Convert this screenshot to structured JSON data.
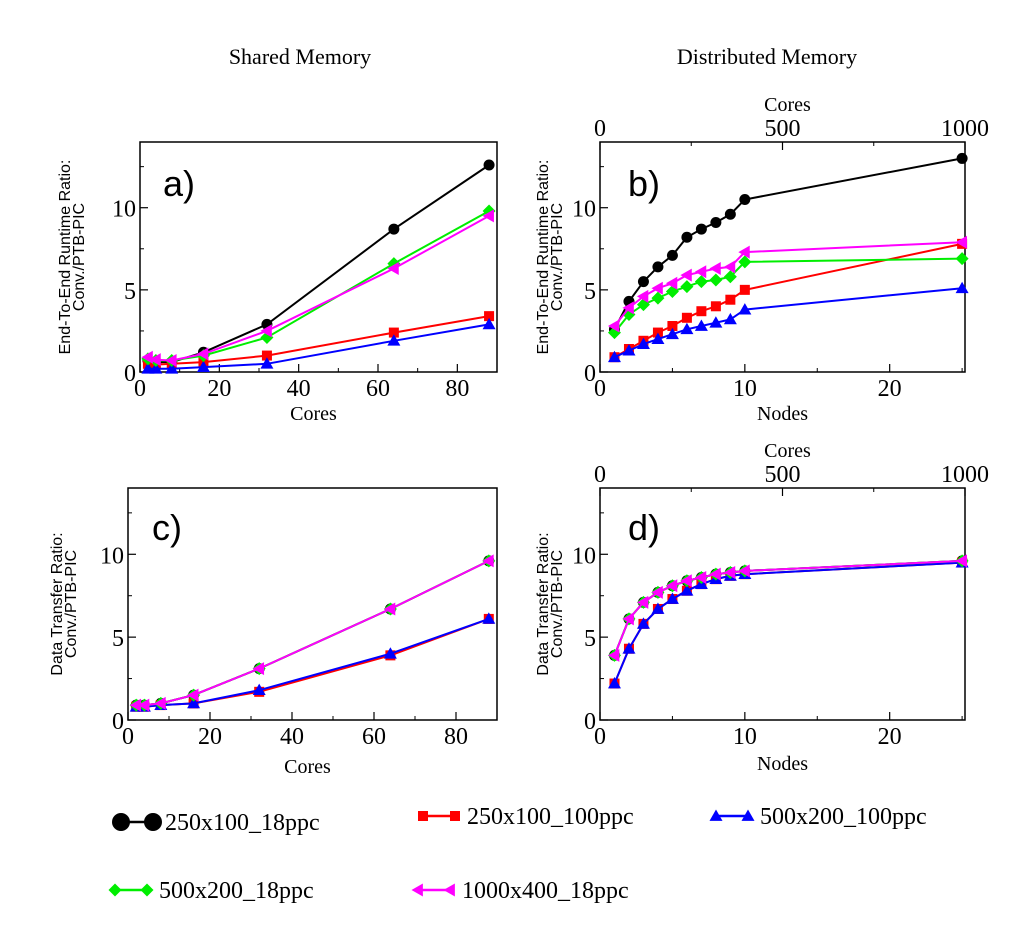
{
  "column_titles": [
    "Shared Memory",
    "Distributed Memory"
  ],
  "legend": [
    {
      "name": "250x100_18ppc",
      "color": "#000000",
      "marker": "circle"
    },
    {
      "name": "250x100_100ppc",
      "color": "#ff0000",
      "marker": "square"
    },
    {
      "name": "500x200_100ppc",
      "color": "#0000ff",
      "marker": "triangle-up"
    },
    {
      "name": "500x200_18ppc",
      "color": "#00ee00",
      "marker": "diamond"
    },
    {
      "name": "1000x400_18ppc",
      "color": "#ff00ff",
      "marker": "triangle-left"
    }
  ],
  "chart_data": [
    {
      "panel": "a)",
      "type": "line",
      "title": "Shared Memory",
      "xlabel": "Cores",
      "ylabel_lines": [
        "End-To-End Runtime Ratio:",
        "Conv./PTB-PIC"
      ],
      "xlim": [
        0,
        90
      ],
      "ylim": [
        0,
        14
      ],
      "xticks": [
        0,
        20,
        40,
        60,
        80
      ],
      "yticks": [
        0,
        5,
        10
      ],
      "x": [
        2,
        4,
        8,
        16,
        32,
        64,
        88
      ],
      "series": [
        {
          "name": "250x100_18ppc",
          "values": [
            0.7,
            0.6,
            0.6,
            1.2,
            2.9,
            8.7,
            12.6
          ]
        },
        {
          "name": "250x100_100ppc",
          "values": [
            0.5,
            0.45,
            0.5,
            0.6,
            1.0,
            2.4,
            3.4
          ]
        },
        {
          "name": "500x200_100ppc",
          "values": [
            0.2,
            0.2,
            0.2,
            0.3,
            0.5,
            1.9,
            2.9
          ]
        },
        {
          "name": "500x200_18ppc",
          "values": [
            0.8,
            0.7,
            0.7,
            1.0,
            2.1,
            6.6,
            9.8
          ]
        },
        {
          "name": "1000x400_18ppc",
          "values": [
            0.9,
            0.75,
            0.7,
            1.1,
            2.5,
            6.3,
            9.5
          ]
        }
      ]
    },
    {
      "panel": "b)",
      "type": "line",
      "title": "Distributed Memory",
      "xlabel": "Nodes",
      "top_xlabel": "Cores",
      "ylabel_lines": [
        "End-To-End Runtime Ratio:",
        "Conv./PTB-PIC"
      ],
      "xlim": [
        0,
        25.2
      ],
      "ylim": [
        0,
        14
      ],
      "xticks": [
        0,
        10,
        20
      ],
      "yticks": [
        0,
        5,
        10
      ],
      "top_xlim": [
        0,
        1000
      ],
      "top_xticks": [
        0,
        500,
        1000
      ],
      "x": [
        1,
        2,
        3,
        4,
        5,
        6,
        7,
        8,
        9,
        10,
        25
      ],
      "series": [
        {
          "name": "250x100_18ppc",
          "values": [
            2.6,
            4.3,
            5.5,
            6.4,
            7.1,
            8.2,
            8.7,
            9.1,
            9.6,
            10.5,
            13.0
          ]
        },
        {
          "name": "250x100_100ppc",
          "values": [
            0.9,
            1.4,
            1.9,
            2.4,
            2.8,
            3.3,
            3.7,
            4.0,
            4.4,
            5.0,
            7.8
          ]
        },
        {
          "name": "500x200_100ppc",
          "values": [
            0.9,
            1.3,
            1.7,
            2.0,
            2.3,
            2.6,
            2.8,
            3.0,
            3.2,
            3.8,
            5.1
          ]
        },
        {
          "name": "500x200_18ppc",
          "values": [
            2.4,
            3.5,
            4.1,
            4.5,
            4.9,
            5.2,
            5.5,
            5.6,
            5.8,
            6.7,
            6.9
          ]
        },
        {
          "name": "1000x400_18ppc",
          "values": [
            2.8,
            3.9,
            4.6,
            5.1,
            5.4,
            5.9,
            6.1,
            6.3,
            6.4,
            7.3,
            7.9
          ]
        }
      ]
    },
    {
      "panel": "c)",
      "type": "line",
      "xlabel": "Cores",
      "ylabel_lines": [
        "Data Transfer Ratio:",
        "Conv./PTB-PIC"
      ],
      "xlim": [
        0,
        90
      ],
      "ylim": [
        0,
        14
      ],
      "xticks": [
        0,
        20,
        40,
        60,
        80
      ],
      "yticks": [
        0,
        5,
        10
      ],
      "x": [
        2,
        4,
        8,
        16,
        32,
        64,
        88
      ],
      "series": [
        {
          "name": "250x100_18ppc",
          "values": [
            0.9,
            0.9,
            1.0,
            1.5,
            3.1,
            6.7,
            9.6
          ]
        },
        {
          "name": "250x100_100ppc",
          "values": [
            0.8,
            0.8,
            0.9,
            1.0,
            1.7,
            3.9,
            6.1
          ]
        },
        {
          "name": "500x200_100ppc",
          "values": [
            0.8,
            0.8,
            0.9,
            1.0,
            1.8,
            4.0,
            6.1
          ]
        },
        {
          "name": "500x200_18ppc",
          "values": [
            0.9,
            0.9,
            1.0,
            1.5,
            3.1,
            6.7,
            9.6
          ]
        },
        {
          "name": "1000x400_18ppc",
          "values": [
            0.9,
            0.9,
            1.0,
            1.5,
            3.1,
            6.7,
            9.6
          ]
        }
      ]
    },
    {
      "panel": "d)",
      "type": "line",
      "xlabel": "Nodes",
      "top_xlabel": "Cores",
      "ylabel_lines": [
        "Data Transfer Ratio:",
        "Conv./PTB-PIC"
      ],
      "xlim": [
        0,
        25.2
      ],
      "ylim": [
        0,
        14
      ],
      "xticks": [
        0,
        10,
        20
      ],
      "yticks": [
        0,
        5,
        10
      ],
      "top_xlim": [
        0,
        1000
      ],
      "top_xticks": [
        0,
        500,
        1000
      ],
      "x": [
        1,
        2,
        3,
        4,
        5,
        6,
        7,
        8,
        9,
        10,
        25
      ],
      "series": [
        {
          "name": "250x100_18ppc",
          "values": [
            3.9,
            6.1,
            7.1,
            7.7,
            8.1,
            8.4,
            8.6,
            8.8,
            8.9,
            9.0,
            9.6
          ]
        },
        {
          "name": "250x100_100ppc",
          "values": [
            2.2,
            4.3,
            5.8,
            6.7,
            7.3,
            7.8,
            8.2,
            8.5,
            8.7,
            8.8,
            9.5
          ]
        },
        {
          "name": "500x200_100ppc",
          "values": [
            2.2,
            4.3,
            5.8,
            6.7,
            7.3,
            7.8,
            8.2,
            8.5,
            8.7,
            8.8,
            9.5
          ]
        },
        {
          "name": "500x200_18ppc",
          "values": [
            3.9,
            6.1,
            7.1,
            7.7,
            8.1,
            8.4,
            8.6,
            8.8,
            8.9,
            9.0,
            9.6
          ]
        },
        {
          "name": "1000x400_18ppc",
          "values": [
            3.9,
            6.1,
            7.1,
            7.7,
            8.1,
            8.4,
            8.6,
            8.8,
            8.9,
            9.0,
            9.6
          ]
        }
      ]
    }
  ]
}
